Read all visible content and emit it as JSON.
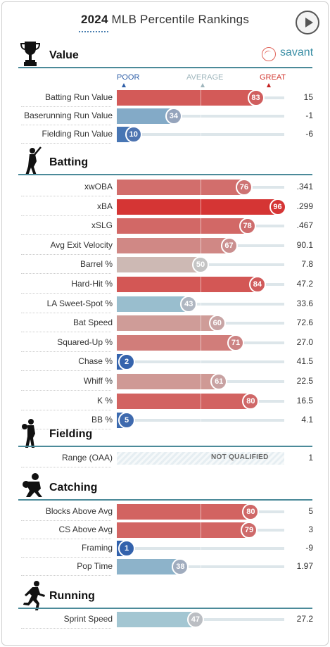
{
  "header": {
    "year": "2024",
    "title": "MLB Percentile Rankings"
  },
  "brand": {
    "label": "savant"
  },
  "scale": {
    "poor": "POOR",
    "average": "AVERAGE",
    "great": "GREAT"
  },
  "sections": [
    {
      "title": "Value",
      "icon": "trophy-icon",
      "rows": [
        {
          "label": "Batting Run Value",
          "pct": 83,
          "value": "15"
        },
        {
          "label": "Baserunning Run Value",
          "pct": 34,
          "value": "-1"
        },
        {
          "label": "Fielding Run Value",
          "pct": 10,
          "value": "-6"
        }
      ]
    },
    {
      "title": "Batting",
      "icon": "batter-icon",
      "rows": [
        {
          "label": "xwOBA",
          "pct": 76,
          "value": ".341"
        },
        {
          "label": "xBA",
          "pct": 96,
          "value": ".299"
        },
        {
          "label": "xSLG",
          "pct": 78,
          "value": ".467"
        },
        {
          "label": "Avg Exit Velocity",
          "pct": 67,
          "value": "90.1"
        },
        {
          "label": "Barrel %",
          "pct": 50,
          "value": "7.8"
        },
        {
          "label": "Hard-Hit %",
          "pct": 84,
          "value": "47.2"
        },
        {
          "label": "LA Sweet-Spot %",
          "pct": 43,
          "value": "33.6"
        },
        {
          "label": "Bat Speed",
          "pct": 60,
          "value": "72.6"
        },
        {
          "label": "Squared-Up %",
          "pct": 71,
          "value": "27.0"
        },
        {
          "label": "Chase %",
          "pct": 2,
          "value": "41.5"
        },
        {
          "label": "Whiff %",
          "pct": 61,
          "value": "22.5"
        },
        {
          "label": "K %",
          "pct": 80,
          "value": "16.5"
        },
        {
          "label": "BB %",
          "pct": 5,
          "value": "4.1"
        }
      ]
    },
    {
      "title": "Fielding",
      "icon": "fielder-icon",
      "rows": [
        {
          "label": "Range (OAA)",
          "pct": null,
          "status": "NOT QUALIFIED",
          "value": "1"
        }
      ]
    },
    {
      "title": "Catching",
      "icon": "catcher-icon",
      "rows": [
        {
          "label": "Blocks Above Avg",
          "pct": 80,
          "value": "5"
        },
        {
          "label": "CS Above Avg",
          "pct": 79,
          "value": "3"
        },
        {
          "label": "Framing",
          "pct": 1,
          "value": "-9"
        },
        {
          "label": "Pop Time",
          "pct": 38,
          "value": "1.97"
        }
      ]
    },
    {
      "title": "Running",
      "icon": "runner-icon",
      "rows": [
        {
          "label": "Sprint Speed",
          "pct": 47,
          "value": "27.2"
        }
      ]
    }
  ]
}
